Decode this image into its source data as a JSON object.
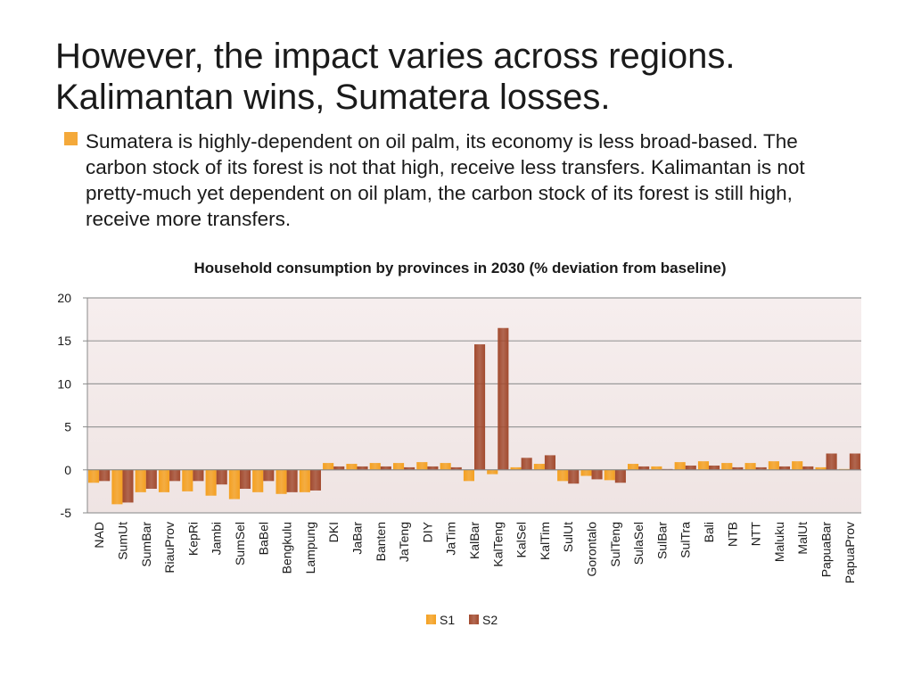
{
  "slide": {
    "title_line1": "However, the impact varies across regions.",
    "title_line2": "Kalimantan wins, Sumatera losses.",
    "bullet": "Sumatera is highly-dependent on oil palm, its economy is less broad-based. The carbon stock of its forest is not that high, receive less transfers. Kalimantan is not pretty-much yet dependent on oil plam, the carbon stock of its forest is still high, receive more transfers.",
    "bullet_color": "#f4a93a"
  },
  "chart_data": {
    "type": "bar",
    "title": "Household consumption by provinces in 2030 (% deviation from baseline)",
    "xlabel": "",
    "ylabel": "",
    "ylim": [
      -5,
      20
    ],
    "yticks": [
      20,
      15,
      10,
      5,
      0,
      -5
    ],
    "grid": true,
    "legend_position": "bottom",
    "categories": [
      "NAD",
      "SumUt",
      "SumBar",
      "RiauProv",
      "KepRi",
      "Jambi",
      "SumSel",
      "BaBel",
      "Bengkulu",
      "Lampung",
      "DKI",
      "JaBar",
      "Banten",
      "JaTeng",
      "DIY",
      "JaTim",
      "KalBar",
      "KalTeng",
      "KalSel",
      "KalTim",
      "SulUt",
      "Gorontalo",
      "SulTeng",
      "SulaSel",
      "SulBar",
      "SulTra",
      "Bali",
      "NTB",
      "NTT",
      "Maluku",
      "MalUt",
      "PapuaBar",
      "PapuaProv"
    ],
    "series": [
      {
        "name": "S1",
        "color": "#f4a020",
        "values": [
          -1.5,
          -4.0,
          -2.6,
          -2.6,
          -2.5,
          -3.0,
          -3.4,
          -2.6,
          -2.8,
          -2.6,
          0.8,
          0.7,
          0.8,
          0.8,
          0.9,
          0.8,
          -1.3,
          -0.5,
          0.3,
          0.7,
          -1.3,
          -0.7,
          -1.2,
          0.7,
          0.4,
          0.9,
          1.0,
          0.8,
          0.8,
          1.0,
          1.0,
          0.3,
          0.1
        ]
      },
      {
        "name": "S2",
        "color": "#a24a2e",
        "values": [
          -1.3,
          -3.8,
          -2.2,
          -1.3,
          -1.3,
          -1.7,
          -2.2,
          -1.3,
          -2.6,
          -2.4,
          0.4,
          0.4,
          0.4,
          0.3,
          0.4,
          0.3,
          14.6,
          16.5,
          1.4,
          1.7,
          -1.6,
          -1.1,
          -1.5,
          0.4,
          0.1,
          0.5,
          0.5,
          0.3,
          0.3,
          0.4,
          0.4,
          1.9,
          1.9
        ]
      }
    ]
  }
}
